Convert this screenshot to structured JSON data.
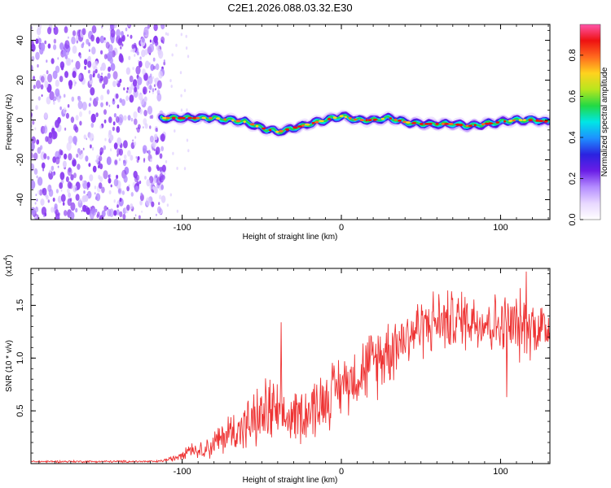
{
  "title": "C2E1.2026.088.03.32.E30",
  "colors": {
    "snr_line": "#ee3333",
    "axes": "#000000",
    "spectrogram_noise": "#8a3cf0",
    "colormap": [
      "#ffffff",
      "#e8d8ff",
      "#b48cff",
      "#6a1de6",
      "#2b22e0",
      "#1e90ff",
      "#00e6e6",
      "#22d944",
      "#b8e61e",
      "#ffd21e",
      "#ff6a1e",
      "#ee1111",
      "#ff55aa"
    ]
  },
  "chart_data": [
    {
      "id": "spectrogram",
      "type": "heatmap",
      "xlabel": "Height of straight line (km)",
      "ylabel": "Frequency (Hz)",
      "xlim": [
        -195,
        131
      ],
      "ylim": [
        -50,
        48
      ],
      "xticks": [
        -100,
        0,
        100
      ],
      "xtick_labels": [
        "-100",
        "0",
        "100"
      ],
      "yticks": [
        -40,
        -20,
        0,
        20,
        40
      ],
      "ytick_labels": [
        "-40",
        "-20",
        "0",
        "20",
        "40"
      ],
      "noise_region_x": [
        -195,
        -113
      ],
      "signal_start_x": -113,
      "ridge": {
        "x": [
          -113,
          -100,
          -90,
          -80,
          -70,
          -60,
          -50,
          -40,
          -30,
          -20,
          -10,
          0,
          10,
          20,
          30,
          40,
          50,
          60,
          70,
          80,
          90,
          100,
          110,
          120,
          131
        ],
        "y": [
          1,
          1,
          1,
          1,
          0,
          -1,
          -4,
          -6,
          -4,
          -2,
          0,
          2,
          0,
          0,
          1,
          -1,
          -2,
          -2,
          -2,
          -3,
          -2,
          -1,
          0,
          0,
          -1
        ]
      },
      "colorbar": {
        "label": "Normalized spectral amplitude",
        "range": [
          0,
          0.95
        ],
        "ticks": [
          0.0,
          0.2,
          0.4,
          0.6,
          0.8
        ],
        "tick_labels": [
          "0.0",
          "0.2",
          "0.4",
          "0.6",
          "0.8"
        ]
      }
    },
    {
      "id": "snr",
      "type": "line",
      "xlabel": "Height of straight line (km)",
      "ylabel": "SNR (10 * v/v)",
      "multiplier_label": "(x10",
      "multiplier_exponent": "4",
      "multiplier_close": ")",
      "xlim": [
        -195,
        131
      ],
      "ylim": [
        0,
        1.85
      ],
      "xticks": [
        -100,
        0,
        100
      ],
      "xtick_labels": [
        "-100",
        "0",
        "100"
      ],
      "yticks": [
        0.5,
        1.0,
        1.5
      ],
      "ytick_labels": [
        "0.5",
        "1.0",
        "1.5"
      ],
      "envelope": {
        "x": [
          -195,
          -115,
          -105,
          -100,
          -95,
          -90,
          -80,
          -70,
          -60,
          -50,
          -45,
          -40,
          -35,
          -30,
          -20,
          -10,
          0,
          10,
          20,
          30,
          40,
          50,
          60,
          70,
          80,
          90,
          100,
          110,
          120,
          131
        ],
        "mean": [
          0.02,
          0.02,
          0.05,
          0.1,
          0.15,
          0.12,
          0.18,
          0.3,
          0.35,
          0.45,
          0.5,
          0.45,
          0.42,
          0.45,
          0.5,
          0.62,
          0.75,
          0.85,
          0.95,
          1.1,
          1.2,
          1.3,
          1.35,
          1.35,
          1.38,
          1.35,
          1.3,
          1.3,
          1.3,
          1.28
        ],
        "amp": [
          0.01,
          0.01,
          0.03,
          0.06,
          0.08,
          0.06,
          0.15,
          0.2,
          0.25,
          0.3,
          0.4,
          0.3,
          0.25,
          0.25,
          0.3,
          0.3,
          0.3,
          0.3,
          0.35,
          0.35,
          0.3,
          0.3,
          0.3,
          0.3,
          0.3,
          0.3,
          0.3,
          0.35,
          0.3,
          0.3
        ]
      },
      "spikes": [
        {
          "x": -38,
          "y": 1.34
        },
        {
          "x": 116,
          "y": 1.82
        },
        {
          "x": 104,
          "y": 0.63
        }
      ]
    }
  ]
}
